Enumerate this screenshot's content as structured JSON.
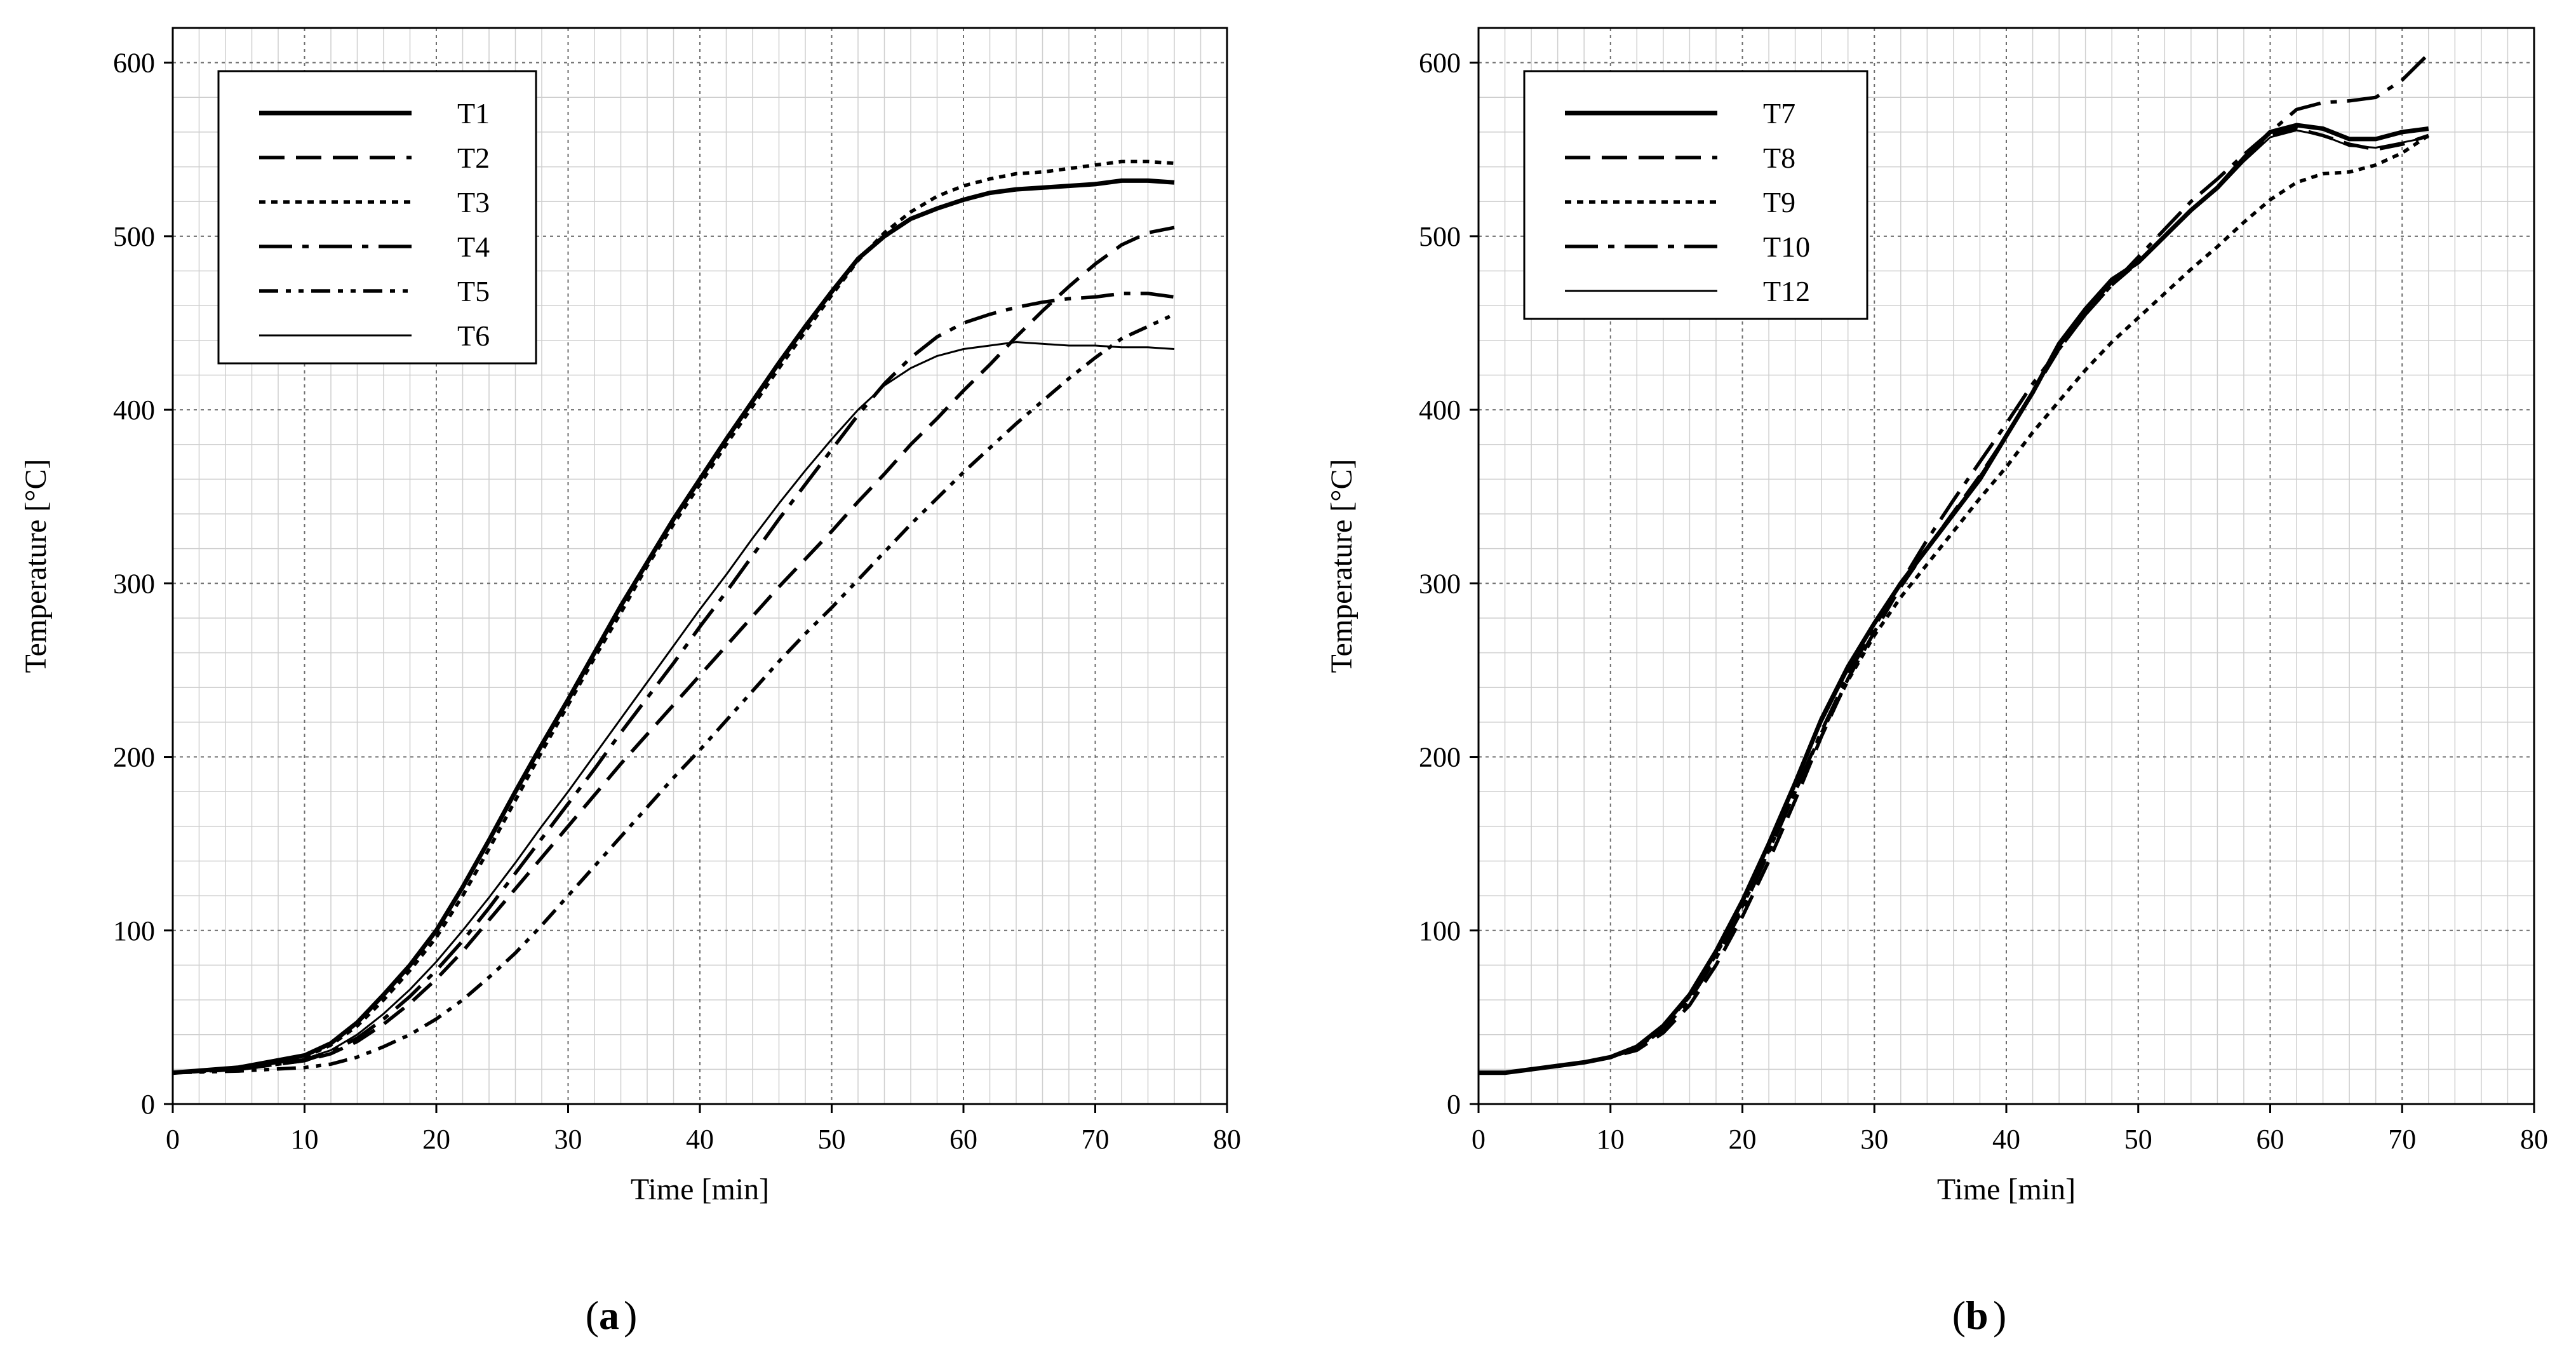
{
  "chart_data": [
    {
      "type": "line",
      "panel_label": "a",
      "title": "",
      "xlabel": "Time [min]",
      "ylabel": "Temperature [°C]",
      "xlim": [
        0,
        80
      ],
      "ylim": [
        0,
        620
      ],
      "x_ticks": [
        0,
        10,
        20,
        30,
        40,
        50,
        60,
        70,
        80
      ],
      "y_ticks": [
        0,
        100,
        200,
        300,
        400,
        500,
        600
      ],
      "grid": true,
      "legend_position": "top-left",
      "series": [
        {
          "name": "T1",
          "style": "solid-thick",
          "x": [
            0,
            5,
            10,
            12,
            14,
            16,
            18,
            20,
            22,
            24,
            26,
            28,
            30,
            32,
            34,
            36,
            38,
            40,
            42,
            44,
            46,
            48,
            50,
            52,
            54,
            56,
            58,
            60,
            62,
            64,
            66,
            68,
            70,
            72,
            74,
            76
          ],
          "y": [
            18,
            21,
            28,
            35,
            47,
            63,
            80,
            100,
            125,
            152,
            180,
            207,
            233,
            260,
            287,
            312,
            337,
            360,
            383,
            405,
            427,
            448,
            468,
            487,
            500,
            510,
            516,
            521,
            525,
            527,
            528,
            529,
            530,
            532,
            532,
            531
          ]
        },
        {
          "name": "T2",
          "style": "dash",
          "x": [
            0,
            5,
            10,
            12,
            14,
            16,
            18,
            20,
            22,
            24,
            26,
            28,
            30,
            32,
            34,
            36,
            38,
            40,
            42,
            44,
            46,
            48,
            50,
            52,
            54,
            56,
            58,
            60,
            62,
            64,
            66,
            68,
            70,
            72,
            74,
            76
          ],
          "y": [
            18,
            20,
            25,
            29,
            36,
            46,
            58,
            72,
            88,
            106,
            124,
            142,
            160,
            178,
            196,
            213,
            230,
            247,
            264,
            281,
            298,
            314,
            330,
            347,
            363,
            380,
            395,
            411,
            426,
            442,
            457,
            471,
            484,
            495,
            502,
            505
          ]
        },
        {
          "name": "T3",
          "style": "dot",
          "x": [
            0,
            5,
            10,
            12,
            14,
            16,
            18,
            20,
            22,
            24,
            26,
            28,
            30,
            32,
            34,
            36,
            38,
            40,
            42,
            44,
            46,
            48,
            50,
            52,
            54,
            56,
            58,
            60,
            62,
            64,
            66,
            68,
            70,
            72,
            74,
            76
          ],
          "y": [
            18,
            21,
            27,
            34,
            45,
            60,
            77,
            96,
            120,
            147,
            175,
            203,
            230,
            257,
            283,
            310,
            334,
            357,
            380,
            402,
            424,
            445,
            466,
            486,
            502,
            514,
            523,
            529,
            533,
            536,
            537,
            539,
            541,
            543,
            543,
            542
          ]
        },
        {
          "name": "T4",
          "style": "long-dash-dot",
          "x": [
            0,
            5,
            10,
            12,
            14,
            16,
            18,
            20,
            22,
            24,
            26,
            28,
            30,
            32,
            34,
            36,
            38,
            40,
            42,
            44,
            46,
            48,
            50,
            52,
            54,
            56,
            58,
            60,
            62,
            64,
            66,
            68,
            70,
            72,
            74,
            76
          ],
          "y": [
            18,
            20,
            25,
            30,
            38,
            49,
            62,
            77,
            94,
            113,
            133,
            153,
            173,
            193,
            214,
            234,
            254,
            275,
            295,
            316,
            337,
            357,
            377,
            397,
            415,
            430,
            442,
            450,
            455,
            459,
            462,
            464,
            465,
            467,
            467,
            465
          ]
        },
        {
          "name": "T5",
          "style": "dash-dot-dot",
          "x": [
            0,
            5,
            10,
            12,
            14,
            16,
            18,
            20,
            22,
            24,
            26,
            28,
            30,
            32,
            34,
            36,
            38,
            40,
            42,
            44,
            46,
            48,
            50,
            52,
            54,
            56,
            58,
            60,
            62,
            64,
            66,
            68,
            70,
            72,
            74,
            76
          ],
          "y": [
            18,
            19,
            21,
            23,
            27,
            33,
            40,
            49,
            60,
            73,
            87,
            103,
            120,
            137,
            154,
            171,
            188,
            204,
            221,
            238,
            255,
            271,
            286,
            302,
            318,
            334,
            349,
            364,
            378,
            392,
            405,
            418,
            430,
            441,
            448,
            455
          ]
        },
        {
          "name": "T6",
          "style": "solid-thin",
          "x": [
            0,
            5,
            10,
            12,
            14,
            16,
            18,
            20,
            22,
            24,
            26,
            28,
            30,
            32,
            34,
            36,
            38,
            40,
            42,
            44,
            46,
            48,
            50,
            52,
            54,
            56,
            58,
            60,
            62,
            64,
            66,
            68,
            70,
            72,
            74,
            76
          ],
          "y": [
            18,
            20,
            26,
            31,
            40,
            52,
            66,
            82,
            100,
            119,
            139,
            160,
            180,
            201,
            222,
            243,
            264,
            285,
            305,
            326,
            346,
            365,
            383,
            400,
            414,
            424,
            431,
            435,
            437,
            439,
            438,
            437,
            437,
            436,
            436,
            435
          ]
        }
      ]
    },
    {
      "type": "line",
      "panel_label": "b",
      "title": "",
      "xlabel": "Time [min]",
      "ylabel": "Temperature [°C]",
      "xlim": [
        0,
        80
      ],
      "ylim": [
        0,
        620
      ],
      "x_ticks": [
        0,
        10,
        20,
        30,
        40,
        50,
        60,
        70,
        80
      ],
      "y_ticks": [
        0,
        100,
        200,
        300,
        400,
        500,
        600
      ],
      "grid": true,
      "legend_position": "top-left",
      "series": [
        {
          "name": "T7",
          "style": "solid-thick",
          "x": [
            0,
            2,
            4,
            6,
            8,
            10,
            12,
            14,
            16,
            18,
            20,
            22,
            24,
            26,
            28,
            30,
            32,
            34,
            36,
            38,
            40,
            42,
            44,
            46,
            48,
            50,
            52,
            54,
            56,
            58,
            60,
            62,
            64,
            66,
            68,
            70,
            72
          ],
          "y": [
            18,
            18,
            20,
            22,
            24,
            27,
            33,
            45,
            63,
            88,
            117,
            150,
            185,
            222,
            252,
            277,
            300,
            320,
            340,
            360,
            385,
            410,
            438,
            458,
            475,
            485,
            500,
            515,
            528,
            545,
            560,
            564,
            562,
            556,
            556,
            560,
            562
          ]
        },
        {
          "name": "T8",
          "style": "dash",
          "x": [
            0,
            2,
            4,
            6,
            8,
            10,
            12,
            14,
            16,
            18,
            20,
            22,
            24,
            26,
            28,
            30,
            32,
            34,
            36,
            38,
            40,
            42,
            44,
            46,
            48,
            50,
            52,
            54,
            56,
            58,
            60,
            62,
            64,
            66,
            68,
            70,
            72
          ],
          "y": [
            18,
            18,
            20,
            22,
            24,
            27,
            31,
            41,
            57,
            80,
            108,
            140,
            175,
            212,
            245,
            272,
            298,
            320,
            341,
            362,
            385,
            410,
            435,
            455,
            472,
            485,
            500,
            515,
            528,
            545,
            558,
            562,
            558,
            553,
            550,
            553,
            558
          ]
        },
        {
          "name": "T9",
          "style": "dot",
          "x": [
            0,
            2,
            4,
            6,
            8,
            10,
            12,
            14,
            16,
            18,
            20,
            22,
            24,
            26,
            28,
            30,
            32,
            34,
            36,
            38,
            40,
            42,
            44,
            46,
            48,
            50,
            52,
            54,
            56,
            58,
            60,
            62,
            64,
            66,
            68,
            70,
            72
          ],
          "y": [
            18,
            18,
            20,
            22,
            24,
            27,
            32,
            44,
            62,
            86,
            114,
            146,
            180,
            214,
            244,
            270,
            292,
            311,
            330,
            349,
            367,
            387,
            405,
            423,
            439,
            453,
            467,
            481,
            494,
            508,
            521,
            531,
            536,
            537,
            541,
            548,
            558
          ]
        },
        {
          "name": "T10",
          "style": "long-dash-dot",
          "x": [
            0,
            2,
            4,
            6,
            8,
            10,
            12,
            14,
            16,
            18,
            20,
            22,
            24,
            26,
            28,
            30,
            32,
            34,
            36,
            38,
            40,
            42,
            44,
            46,
            48,
            50,
            52,
            54,
            56,
            58,
            60,
            62,
            64,
            66,
            68,
            70,
            72
          ],
          "y": [
            18,
            18,
            20,
            22,
            24,
            27,
            32,
            43,
            60,
            84,
            112,
            145,
            180,
            215,
            247,
            275,
            300,
            325,
            348,
            370,
            392,
            415,
            435,
            455,
            472,
            488,
            504,
            520,
            533,
            547,
            560,
            573,
            577,
            578,
            580,
            590,
            605
          ]
        },
        {
          "name": "T12",
          "style": "solid-thin",
          "x": [
            0,
            2,
            4,
            6,
            8,
            10,
            12,
            14,
            16,
            18,
            20,
            22,
            24,
            26,
            28,
            30,
            32,
            34,
            36,
            38,
            40,
            42,
            44,
            46,
            48,
            50,
            52,
            54,
            56,
            58,
            60,
            62,
            64,
            66,
            68,
            70,
            72
          ],
          "y": [
            18,
            18,
            20,
            22,
            24,
            27,
            32,
            44,
            62,
            87,
            116,
            149,
            184,
            220,
            250,
            276,
            299,
            320,
            340,
            362,
            385,
            410,
            436,
            456,
            473,
            485,
            500,
            515,
            527,
            543,
            557,
            561,
            558,
            552,
            551,
            554,
            557
          ]
        }
      ]
    }
  ]
}
